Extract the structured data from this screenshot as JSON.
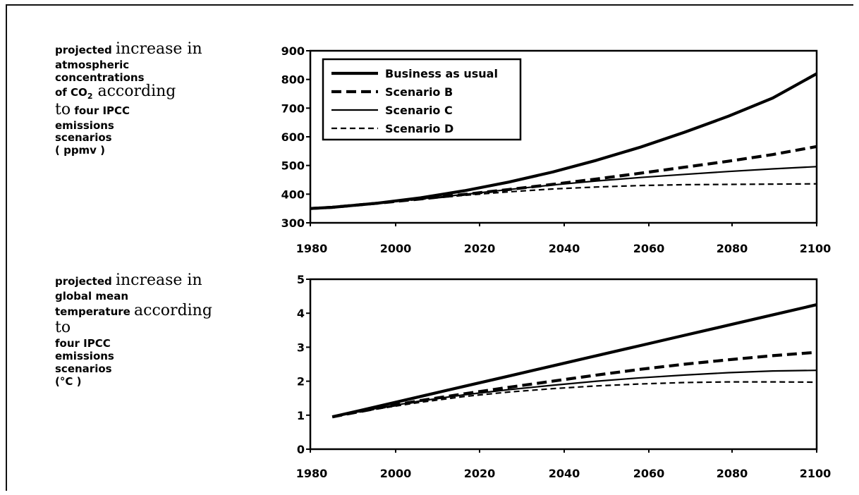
{
  "left_text": {
    "co2": [
      [
        {
          "t": "projected ",
          "s": "sm"
        },
        {
          "t": "increase in",
          "s": "big"
        }
      ],
      [
        {
          "t": "atmospheric",
          "s": "sm"
        }
      ],
      [
        {
          "t": "concentrations",
          "s": "sm"
        }
      ],
      [
        {
          "t": "of CO",
          "s": "sm"
        },
        {
          "t": "2",
          "s": "sub"
        },
        {
          "t": " according",
          "s": "big"
        }
      ],
      [
        {
          "t": "to",
          "s": "big"
        },
        {
          "t": "  four IPCC",
          "s": "sm"
        }
      ],
      [
        {
          "t": "emissions",
          "s": "sm"
        }
      ],
      [
        {
          "t": "scenarios",
          "s": "sm"
        }
      ],
      [
        {
          "t": "( ppmv )",
          "s": "sm"
        }
      ]
    ],
    "temp": [
      [
        {
          "t": "projected ",
          "s": "sm"
        },
        {
          "t": "increase in",
          "s": "big"
        }
      ],
      [
        {
          "t": "global mean",
          "s": "sm"
        }
      ],
      [
        {
          "t": "temperature ",
          "s": "sm"
        },
        {
          "t": "according",
          "s": "big"
        }
      ],
      [
        {
          "t": "to",
          "s": "big"
        }
      ],
      [
        {
          "t": "four IPCC",
          "s": "sm"
        }
      ],
      [
        {
          "t": "emissions",
          "s": "sm"
        }
      ],
      [
        {
          "t": "scenarios",
          "s": "sm"
        }
      ],
      [
        {
          "t": "(°C )",
          "s": "sm"
        }
      ]
    ]
  },
  "chart_data": [
    {
      "type": "line",
      "title": "",
      "xlabel": "",
      "ylabel": "",
      "xlim": [
        1985,
        2100
      ],
      "ylim": [
        300,
        900
      ],
      "xticks": [
        1980,
        2000,
        2020,
        2040,
        2060,
        2080,
        2100
      ],
      "yticks": [
        300,
        400,
        500,
        600,
        700,
        800,
        900
      ],
      "x": [
        1985,
        1990,
        2000,
        2010,
        2020,
        2030,
        2040,
        2050,
        2060,
        2070,
        2080,
        2090,
        2100
      ],
      "legend_position": "top-left",
      "series": [
        {
          "name": "Business as usual",
          "style": "thick-solid",
          "values": [
            350,
            354,
            368,
            387,
            412,
            442,
            477,
            518,
            564,
            616,
            672,
            735,
            820
          ]
        },
        {
          "name": "Scenario B",
          "style": "thick-dash",
          "values": [
            350,
            354,
            368,
            383,
            399,
            416,
            434,
            453,
            473,
            494,
            515,
            538,
            566
          ]
        },
        {
          "name": "Scenario C",
          "style": "thin-solid",
          "values": [
            350,
            354,
            368,
            383,
            399,
            416,
            432,
            446,
            458,
            469,
            479,
            488,
            496
          ]
        },
        {
          "name": "Scenario D",
          "style": "thin-dash",
          "values": [
            350,
            354,
            368,
            382,
            396,
            408,
            418,
            425,
            430,
            433,
            434,
            435,
            436
          ]
        }
      ]
    },
    {
      "type": "line",
      "title": "",
      "xlabel": "",
      "ylabel": "",
      "xlim": [
        1985,
        2100
      ],
      "ylim": [
        0,
        5
      ],
      "xticks": [
        1980,
        2000,
        2020,
        2040,
        2060,
        2080,
        2100
      ],
      "yticks": [
        0,
        1,
        2,
        3,
        4,
        5
      ],
      "x": [
        1990,
        2000,
        2010,
        2020,
        2030,
        2040,
        2050,
        2060,
        2070,
        2080,
        2090,
        2100
      ],
      "series": [
        {
          "name": "Business as usual",
          "style": "thick-solid",
          "values": [
            0.95,
            1.25,
            1.55,
            1.85,
            2.15,
            2.45,
            2.75,
            3.05,
            3.35,
            3.65,
            3.95,
            4.25
          ]
        },
        {
          "name": "Scenario B",
          "style": "thick-dash",
          "values": [
            0.95,
            1.2,
            1.43,
            1.63,
            1.82,
            2.0,
            2.18,
            2.35,
            2.5,
            2.63,
            2.75,
            2.85
          ]
        },
        {
          "name": "Scenario C",
          "style": "thin-solid",
          "values": [
            0.95,
            1.2,
            1.42,
            1.6,
            1.75,
            1.88,
            2.0,
            2.1,
            2.18,
            2.25,
            2.3,
            2.32
          ]
        },
        {
          "name": "Scenario D",
          "style": "thin-dash",
          "values": [
            0.95,
            1.18,
            1.38,
            1.55,
            1.68,
            1.78,
            1.86,
            1.92,
            1.96,
            1.98,
            1.98,
            1.97
          ]
        }
      ]
    }
  ]
}
